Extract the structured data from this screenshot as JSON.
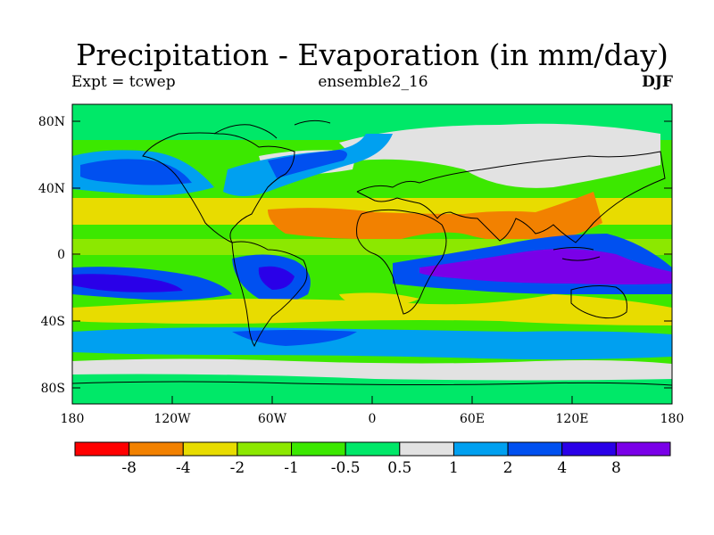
{
  "title": "Precipitation - Evaporation (in mm/day)",
  "subtitle_left": "Expt = tcwep",
  "subtitle_center": "ensemble2_16",
  "subtitle_right": "DJF",
  "map": {
    "variable": "Precipitation - Evaporation",
    "units": "mm/day",
    "season": "DJF",
    "lon_range": [
      -180,
      180
    ],
    "lat_range": [
      -90,
      90
    ],
    "lat_ticks": [
      {
        "value": 80,
        "label": "80N"
      },
      {
        "value": 40,
        "label": "40N"
      },
      {
        "value": 0,
        "label": "0"
      },
      {
        "value": -40,
        "label": "40S"
      },
      {
        "value": -80,
        "label": "80S"
      }
    ],
    "lon_ticks": [
      {
        "value": -180,
        "label": "180"
      },
      {
        "value": -120,
        "label": "120W"
      },
      {
        "value": -60,
        "label": "60W"
      },
      {
        "value": 0,
        "label": "0"
      },
      {
        "value": 60,
        "label": "60E"
      },
      {
        "value": 120,
        "label": "120E"
      },
      {
        "value": 180,
        "label": "180"
      }
    ]
  },
  "colorbar": {
    "colors": [
      "#ff0000",
      "#f28100",
      "#e8dc00",
      "#8ce800",
      "#3ce800",
      "#00e868",
      "#e2e2e2",
      "#00a0f0",
      "#0050f0",
      "#2a00e8",
      "#7a00e8"
    ],
    "labels": [
      "-8",
      "-4",
      "-2",
      "-1",
      "-0.5",
      "0.5",
      "1",
      "2",
      "4",
      "8"
    ]
  }
}
